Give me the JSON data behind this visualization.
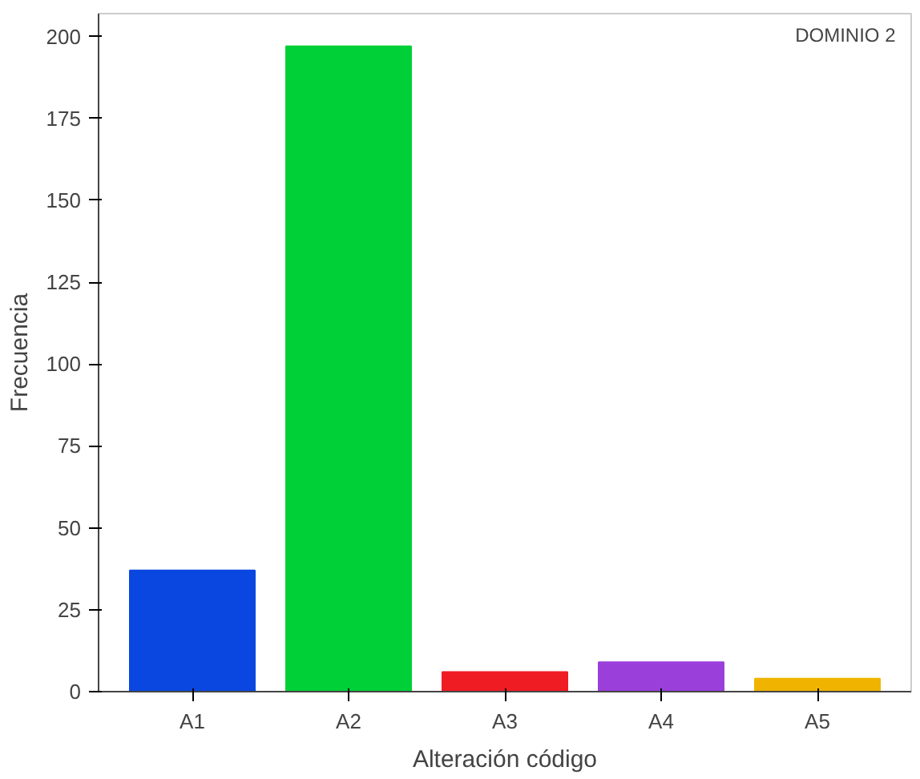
{
  "chart_data": {
    "type": "bar",
    "xlabel": "Alteración código",
    "ylabel": "Frecuencia",
    "categories": [
      "A1",
      "A2",
      "A3",
      "A4",
      "A5"
    ],
    "values": [
      37,
      197,
      6,
      9,
      4
    ],
    "colors": [
      "#0a47e0",
      "#00d038",
      "#f01c24",
      "#9b3fdb",
      "#f0b400"
    ],
    "ylim": [
      0,
      207
    ],
    "yticks": [
      0,
      25,
      50,
      75,
      100,
      125,
      150,
      175,
      200
    ],
    "grid": false,
    "annotations": [
      "DOMINIO 2"
    ]
  }
}
